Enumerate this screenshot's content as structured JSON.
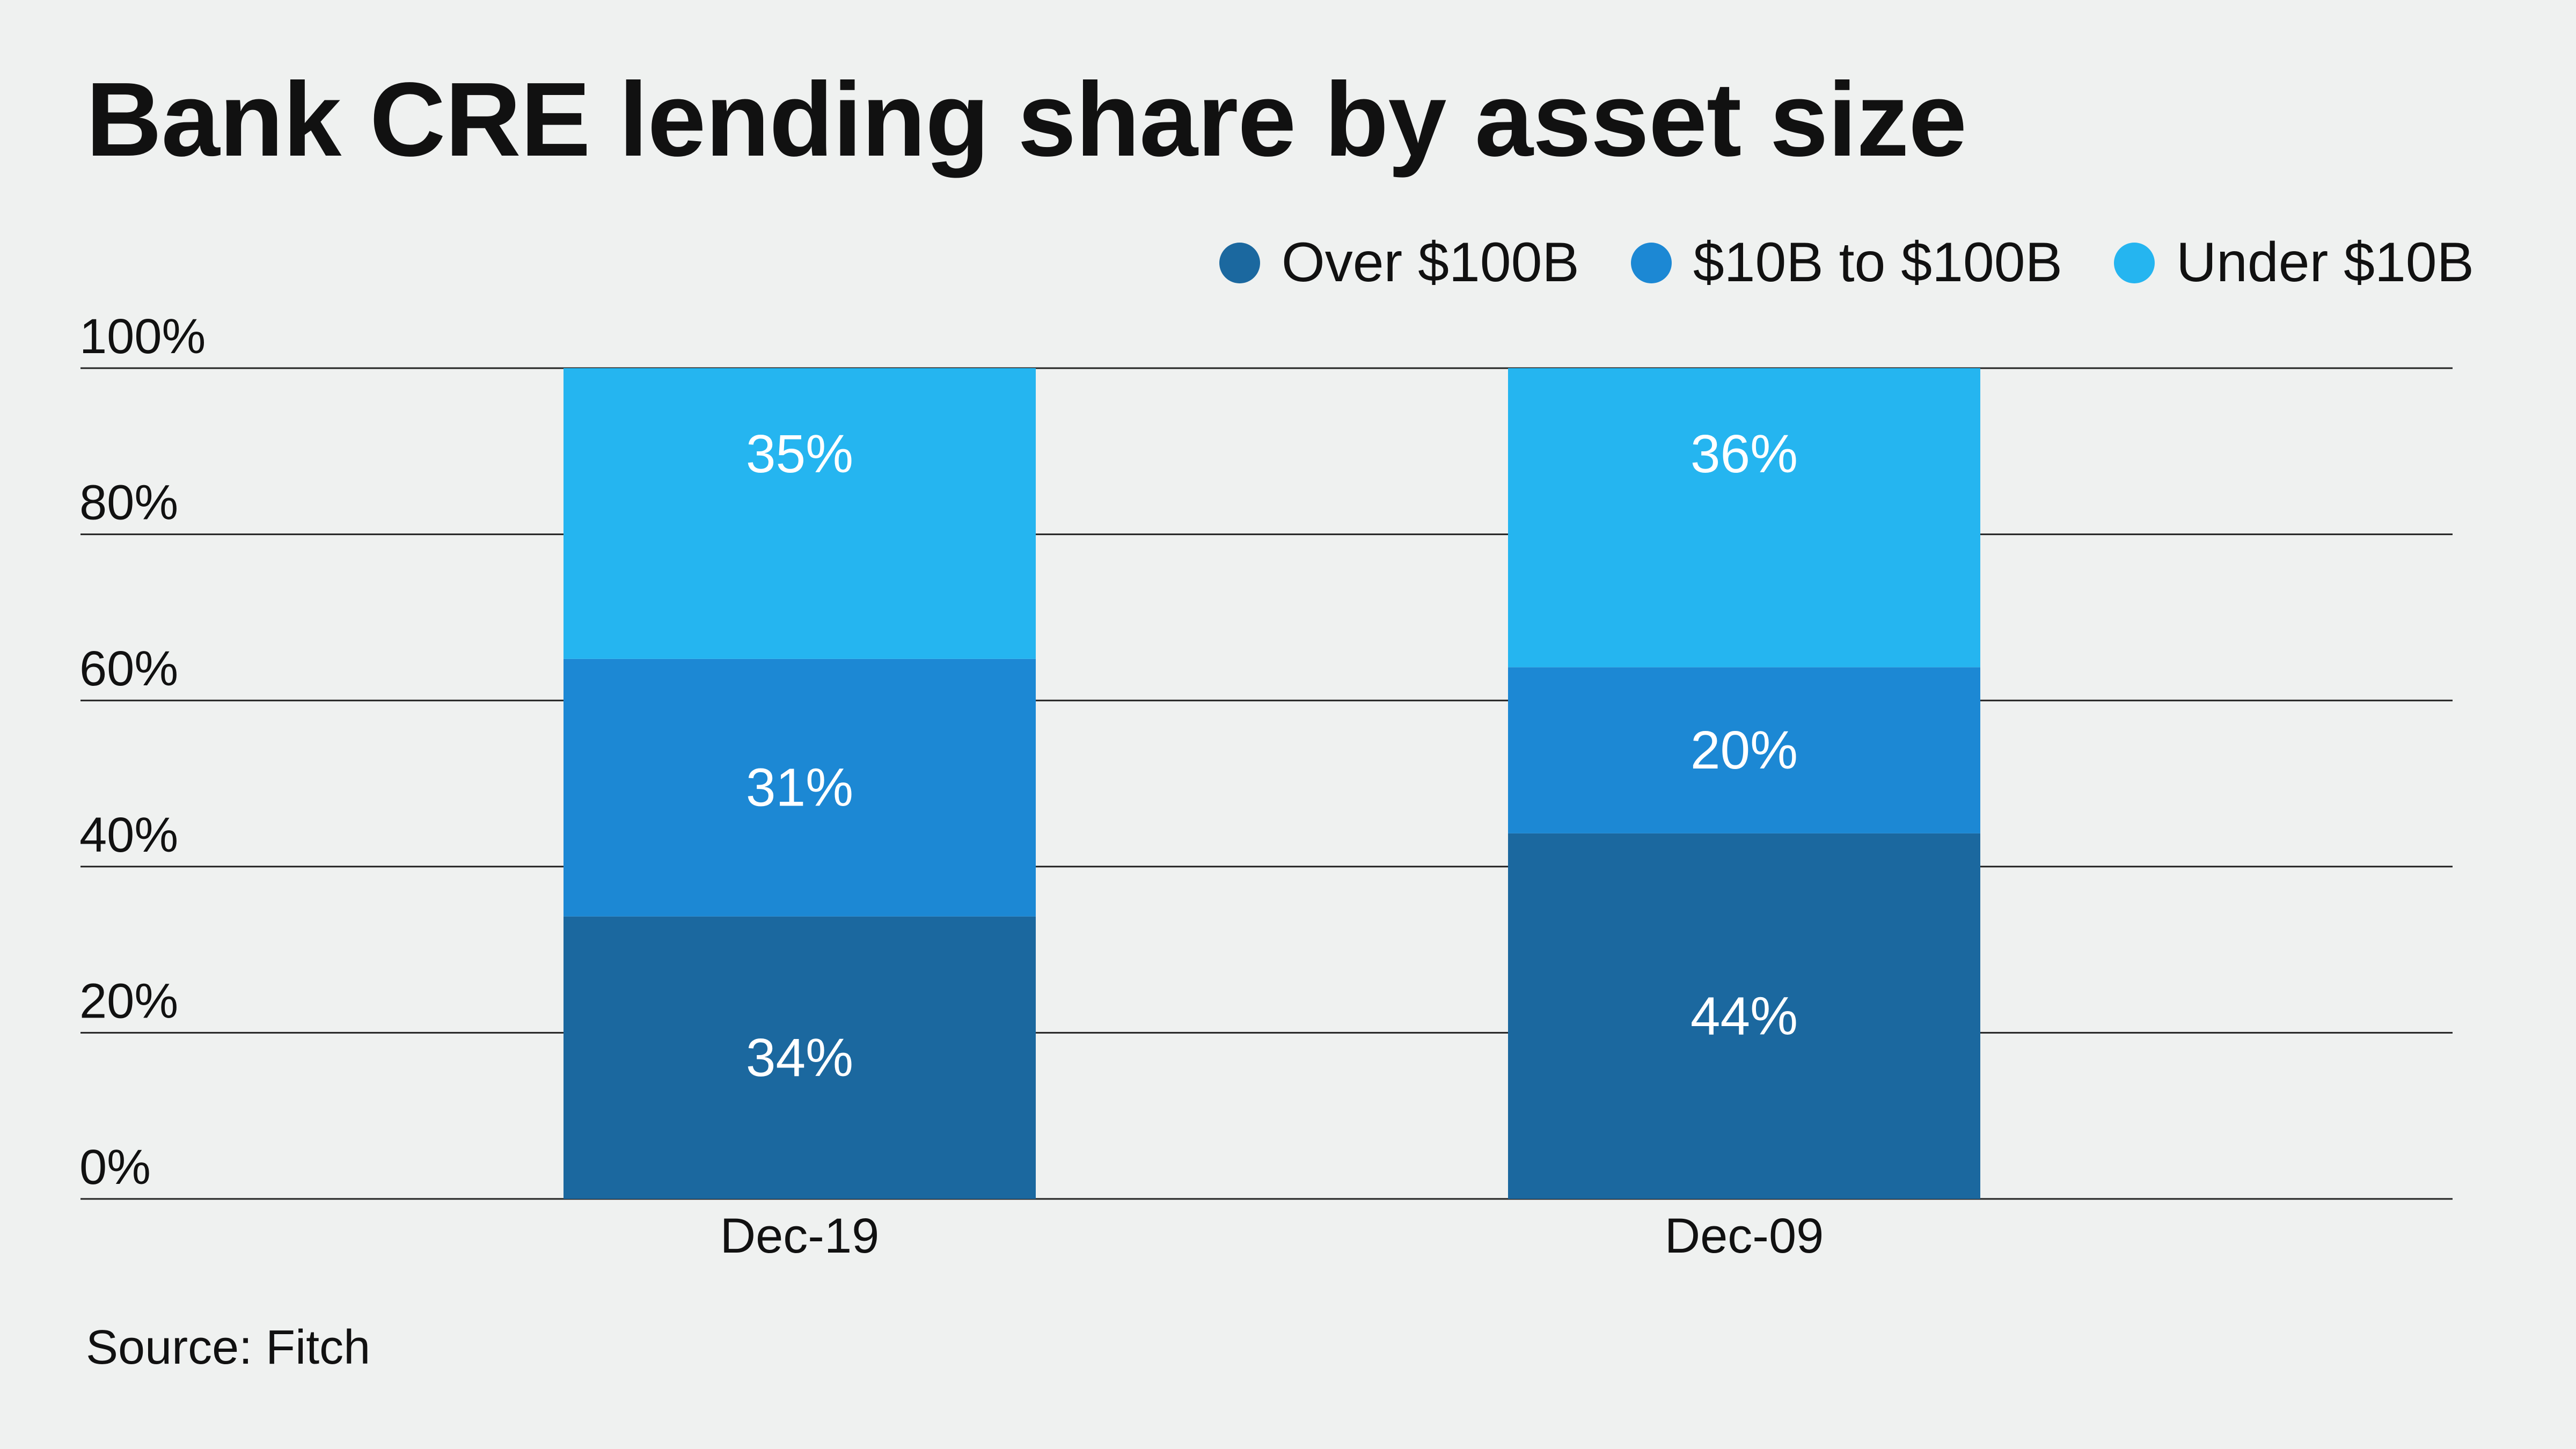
{
  "title": "Bank CRE lending share by asset size",
  "source": "Source: Fitch",
  "legend": [
    {
      "label": "Over $100B",
      "color": "#1b689f"
    },
    {
      "label": "$10B to $100B",
      "color": "#1c88d4"
    },
    {
      "label": "Under $10B",
      "color": "#25b5f0"
    }
  ],
  "chart_data": {
    "type": "bar",
    "stacked": true,
    "categories": [
      "Dec-19",
      "Dec-09"
    ],
    "series": [
      {
        "name": "Over $100B",
        "color": "#1b689f",
        "values": [
          34,
          44
        ],
        "labels": [
          "34%",
          "44%"
        ]
      },
      {
        "name": "$10B to $100B",
        "color": "#1c88d4",
        "values": [
          31,
          20
        ],
        "labels": [
          "31%",
          "20%"
        ]
      },
      {
        "name": "Under $10B",
        "color": "#25b5f0",
        "values": [
          35,
          36
        ],
        "labels": [
          "35%",
          "36%"
        ]
      }
    ],
    "ylim": [
      0,
      100
    ],
    "yticks": [
      0,
      20,
      40,
      60,
      80,
      100
    ],
    "ytick_labels": [
      "0%",
      "20%",
      "40%",
      "60%",
      "80%",
      "100%"
    ],
    "grid": true,
    "legend_position": "top-right"
  }
}
